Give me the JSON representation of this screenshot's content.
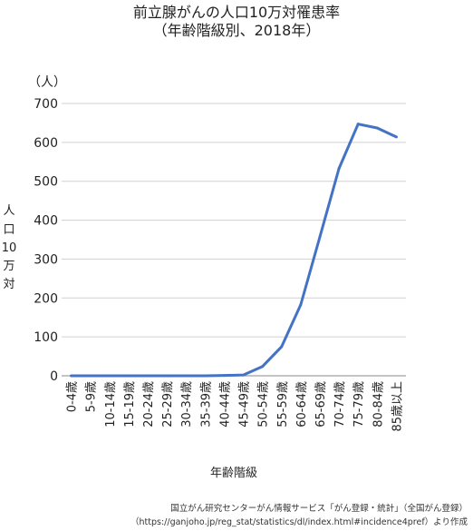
{
  "chart_data": {
    "type": "line",
    "title_line1": "前立腺がんの人口10万対罹患率",
    "title_line2": "（年齢階級別、2018年）",
    "unit_label": "（人）",
    "ylabel_chars": [
      "人",
      "口",
      "10",
      "万",
      "対"
    ],
    "xlabel": "年齢階級",
    "ylim": [
      0,
      700
    ],
    "yticks": [
      "0",
      "100",
      "200",
      "300",
      "400",
      "500",
      "600",
      "700"
    ],
    "grid": true,
    "categories": [
      "0-4歳",
      "5-9歳",
      "10-14歳",
      "15-19歳",
      "20-24歳",
      "25-29歳",
      "30-34歳",
      "35-39歳",
      "40-44歳",
      "45-49歳",
      "50-54歳",
      "55-59歳",
      "60-64歳",
      "65-69歳",
      "70-74歳",
      "75-79歳",
      "80-84歳",
      "85歳以上"
    ],
    "series": [
      {
        "color": "#4472c4",
        "values": [
          0,
          0,
          0,
          0,
          0,
          0,
          0,
          0,
          1,
          2,
          24,
          75,
          183,
          357,
          533,
          647,
          637,
          614
        ]
      }
    ]
  },
  "source_line1": "国立がん研究センターがん情報サービス「がん登録・統計」（全国がん登録）",
  "source_line2": "（https://ganjoho.jp/reg_stat/statistics/dl/index.html#incidence4pref）より作成"
}
